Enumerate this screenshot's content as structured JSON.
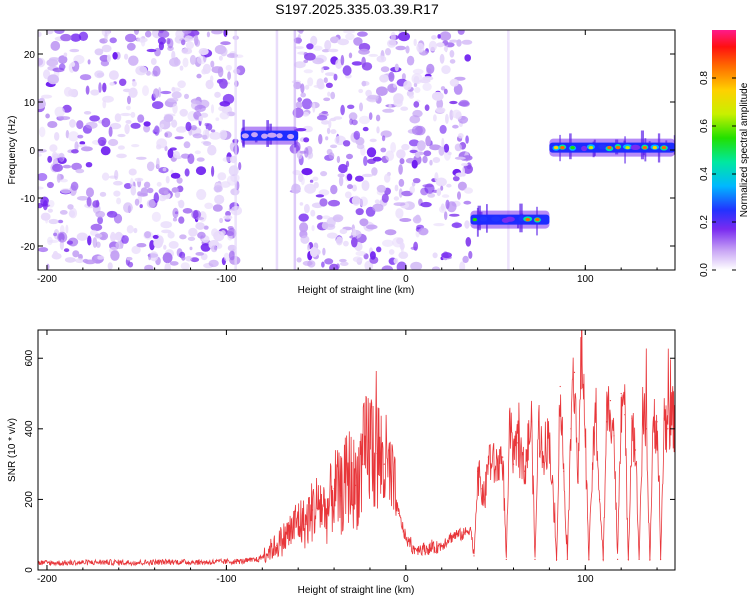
{
  "title": "S197.2025.335.03.39.R17",
  "chart_data": [
    {
      "type": "heatmap",
      "title": "S197.2025.335.03.39.R17",
      "xlabel": "Height of straight line (km)",
      "ylabel": "Frequency (Hz)",
      "xlim": [
        -205,
        150
      ],
      "ylim": [
        -25,
        25
      ],
      "xticks": [
        "-200",
        "-100",
        "0",
        "100"
      ],
      "yticks": [
        "20",
        "10",
        "0",
        "-10",
        "-20"
      ],
      "colorbar": {
        "label": "Normalized spectral amplitude",
        "range": [
          0.0,
          1.0
        ],
        "ticks": [
          "0.0",
          "0.2",
          "0.4",
          "0.6",
          "0.8"
        ]
      },
      "noise_regions_km": [
        [
          -205,
          -92
        ],
        [
          -62,
          36
        ]
      ],
      "empty_regions_km": [
        [
          -92,
          -62
        ],
        [
          80,
          150
        ]
      ],
      "signal_segments": [
        {
          "x_start": -92,
          "x_end": -60,
          "frequency_hz": 3,
          "peak_amplitude": 0.3
        },
        {
          "x_start": 36,
          "x_end": 80,
          "frequency_hz": -14.5,
          "peak_amplitude": 0.9
        },
        {
          "x_start": 80,
          "x_end": 150,
          "frequency_hz": 0.5,
          "peak_amplitude": 0.95
        }
      ]
    },
    {
      "type": "line",
      "xlabel": "Height of straight line (km)",
      "ylabel": "SNR (10 * v/v)",
      "xlim": [
        -205,
        150
      ],
      "ylim": [
        0,
        680
      ],
      "xticks": [
        "-200",
        "-100",
        "0",
        "100"
      ],
      "yticks": [
        "0",
        "200",
        "400",
        "600"
      ],
      "color": "#e8363a",
      "series": [
        {
          "name": "SNR",
          "x": [
            -205,
            -190,
            -170,
            -150,
            -130,
            -110,
            -90,
            -82,
            -76,
            -72,
            -68,
            -64,
            -60,
            -56,
            -52,
            -48,
            -44,
            -40,
            -36,
            -32,
            -28,
            -24,
            -20,
            -16,
            -12,
            -8,
            -4,
            0,
            4,
            8,
            12,
            16,
            20,
            24,
            28,
            32,
            36,
            38,
            40,
            42,
            44,
            46,
            50,
            54,
            56,
            58,
            60,
            62,
            66,
            70,
            72,
            74,
            76,
            80,
            84,
            86,
            88,
            90,
            92,
            94,
            96,
            98,
            100,
            102,
            104,
            106,
            108,
            110,
            112,
            114,
            116,
            118,
            120,
            122,
            124,
            126,
            128,
            130,
            132,
            134,
            136,
            138,
            140,
            142,
            144,
            146,
            148,
            150
          ],
          "values": [
            20,
            20,
            22,
            21,
            23,
            22,
            25,
            30,
            55,
            70,
            90,
            110,
            140,
            130,
            170,
            190,
            160,
            230,
            210,
            270,
            240,
            300,
            360,
            330,
            300,
            250,
            160,
            90,
            60,
            60,
            60,
            62,
            70,
            90,
            100,
            100,
            120,
            40,
            280,
            230,
            200,
            320,
            290,
            320,
            30,
            420,
            300,
            360,
            280,
            420,
            30,
            420,
            330,
            380,
            30,
            520,
            280,
            30,
            400,
            560,
            250,
            660,
            380,
            30,
            300,
            440,
            200,
            30,
            420,
            480,
            380,
            30,
            500,
            440,
            30,
            430,
            340,
            30,
            430,
            400,
            30,
            420,
            420,
            30,
            430,
            400,
            440,
            410
          ]
        }
      ]
    }
  ]
}
